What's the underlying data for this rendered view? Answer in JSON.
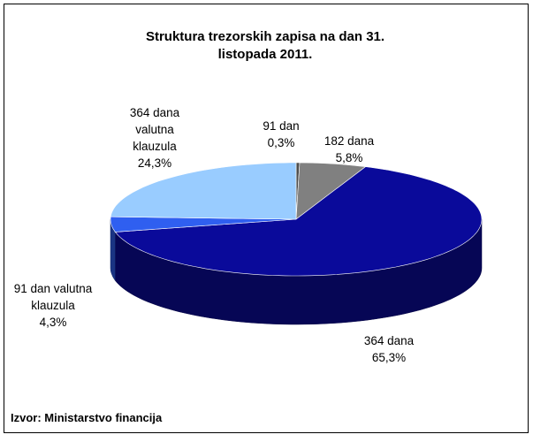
{
  "chart_data": {
    "type": "pie3d",
    "title": "Struktura trezorskih zapisa na dan 31. listopada 2011.",
    "categories": [
      "91 dan",
      "182 dana",
      "364 dana",
      "91 dan valutna klauzula",
      "364 dana valutna klauzula"
    ],
    "values": [
      0.3,
      5.8,
      65.3,
      4.3,
      24.3
    ],
    "value_labels": [
      "0,3%",
      "5,8%",
      "65,3%",
      "4,3%",
      "24,3%"
    ],
    "colors": [
      "#4d4d4d",
      "#808080",
      "#0a0a9a",
      "#2f5ff0",
      "#99ccff"
    ],
    "source": "Izvor: Ministarstvo financija"
  }
}
